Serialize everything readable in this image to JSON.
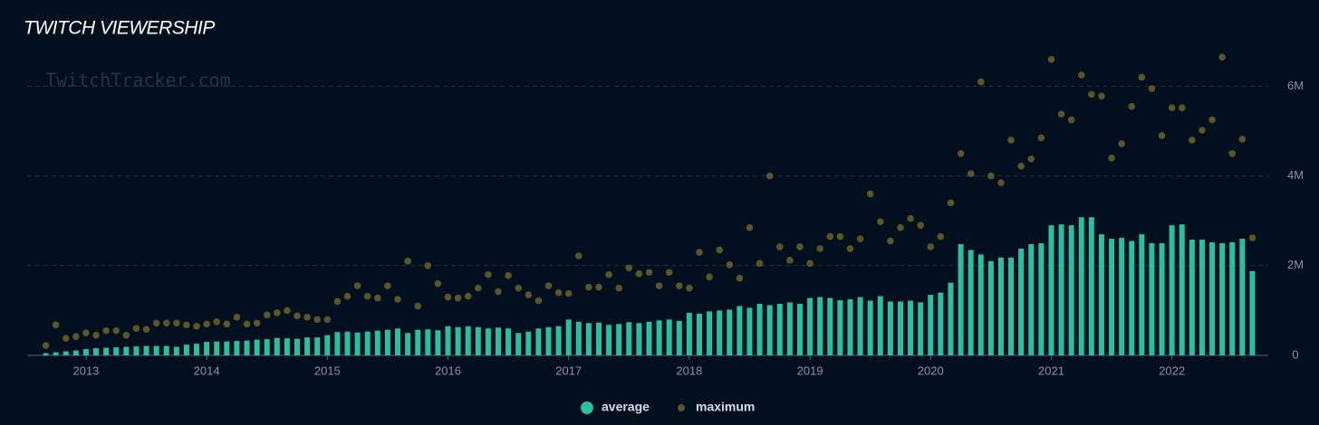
{
  "chart_data": {
    "type": "bar",
    "title": "TWITCH VIEWERSHIP",
    "watermark": "TwitchTracker.com",
    "categories": [
      null,
      null,
      null,
      null,
      "2013",
      null,
      null,
      null,
      null,
      null,
      null,
      null,
      null,
      null,
      null,
      null,
      "2014",
      null,
      null,
      null,
      null,
      null,
      null,
      null,
      null,
      null,
      null,
      null,
      "2015",
      null,
      null,
      null,
      null,
      null,
      null,
      null,
      null,
      null,
      null,
      null,
      "2016",
      null,
      null,
      null,
      null,
      null,
      null,
      null,
      null,
      null,
      null,
      null,
      "2017",
      null,
      null,
      null,
      null,
      null,
      null,
      null,
      null,
      null,
      null,
      null,
      "2018",
      null,
      null,
      null,
      null,
      null,
      null,
      null,
      null,
      null,
      null,
      null,
      "2019",
      null,
      null,
      null,
      null,
      null,
      null,
      null,
      null,
      null,
      null,
      null,
      "2020",
      null,
      null,
      null,
      null,
      null,
      null,
      null,
      null,
      null,
      null,
      null,
      "2021",
      null,
      null,
      null,
      null,
      null,
      null,
      null,
      null,
      null,
      null,
      null,
      "2022",
      null,
      null,
      null,
      null,
      null,
      null,
      null,
      null
    ],
    "series": [
      {
        "name": "average",
        "type": "bar",
        "color": "#2bbf9f",
        "values": [
          50000,
          70000,
          90000,
          110000,
          140000,
          160000,
          170000,
          180000,
          190000,
          200000,
          210000,
          210000,
          210000,
          190000,
          240000,
          260000,
          300000,
          310000,
          310000,
          320000,
          330000,
          350000,
          360000,
          390000,
          380000,
          370000,
          400000,
          400000,
          450000,
          520000,
          530000,
          510000,
          530000,
          550000,
          570000,
          600000,
          500000,
          570000,
          580000,
          560000,
          650000,
          630000,
          650000,
          630000,
          600000,
          620000,
          600000,
          500000,
          530000,
          600000,
          630000,
          650000,
          800000,
          750000,
          720000,
          730000,
          680000,
          700000,
          740000,
          720000,
          750000,
          780000,
          800000,
          770000,
          950000,
          930000,
          980000,
          1000000,
          1020000,
          1100000,
          1060000,
          1150000,
          1120000,
          1150000,
          1180000,
          1150000,
          1280000,
          1300000,
          1280000,
          1230000,
          1250000,
          1300000,
          1220000,
          1320000,
          1200000,
          1200000,
          1220000,
          1180000,
          1350000,
          1400000,
          1620000,
          2480000,
          2350000,
          2250000,
          2100000,
          2180000,
          2180000,
          2380000,
          2480000,
          2500000,
          2900000,
          2920000,
          2900000,
          3080000,
          3080000,
          2700000,
          2600000,
          2620000,
          2550000,
          2700000,
          2500000,
          2500000,
          2900000,
          2920000,
          2580000,
          2580000,
          2520000,
          2500000,
          2520000,
          2600000,
          1880000
        ]
      },
      {
        "name": "maximum",
        "type": "scatter",
        "color": "#5b5628",
        "values": [
          220000,
          680000,
          380000,
          420000,
          500000,
          450000,
          550000,
          550000,
          450000,
          600000,
          580000,
          720000,
          720000,
          720000,
          680000,
          650000,
          700000,
          750000,
          700000,
          850000,
          700000,
          720000,
          900000,
          950000,
          1000000,
          880000,
          850000,
          800000,
          800000,
          1200000,
          1320000,
          1550000,
          1320000,
          1280000,
          1550000,
          1250000,
          2100000,
          1100000,
          2000000,
          1600000,
          1300000,
          1280000,
          1320000,
          1500000,
          1800000,
          1420000,
          1780000,
          1500000,
          1350000,
          1220000,
          1550000,
          1400000,
          1380000,
          2220000,
          1520000,
          1520000,
          1800000,
          1500000,
          1950000,
          1820000,
          1850000,
          1550000,
          1850000,
          1550000,
          1500000,
          2300000,
          1750000,
          2350000,
          2020000,
          1720000,
          2850000,
          2050000,
          4000000,
          2420000,
          2120000,
          2420000,
          2050000,
          2380000,
          2650000,
          2650000,
          2380000,
          2600000,
          3600000,
          2980000,
          2550000,
          2850000,
          3050000,
          2900000,
          2420000,
          2650000,
          3400000,
          4500000,
          4050000,
          6100000,
          4000000,
          3850000,
          4800000,
          4220000,
          4380000,
          4850000,
          6600000,
          5380000,
          5250000,
          6250000,
          5820000,
          5780000,
          4400000,
          4720000,
          5550000,
          6200000,
          5950000,
          4900000,
          5520000,
          5520000,
          4800000,
          5020000,
          5250000,
          6650000,
          4500000,
          4820000,
          2620000
        ]
      }
    ],
    "ylim": [
      0,
      6800000
    ],
    "yticks": [
      0,
      {
        "value": 2000000,
        "label": "2M"
      },
      {
        "value": 4000000,
        "label": "4M"
      },
      {
        "value": 6000000,
        "label": "6M"
      }
    ],
    "grid": true
  }
}
